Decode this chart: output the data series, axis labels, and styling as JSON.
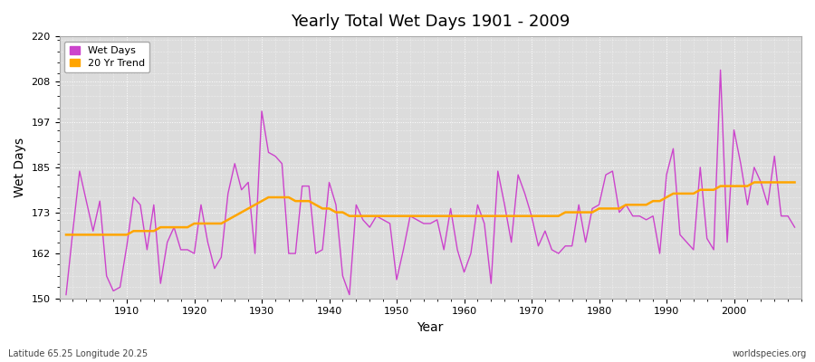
{
  "title": "Yearly Total Wet Days 1901 - 2009",
  "xlabel": "Year",
  "ylabel": "Wet Days",
  "subtitle_left": "Latitude 65.25 Longitude 20.25",
  "subtitle_right": "worldspecies.org",
  "ylim": [
    150,
    220
  ],
  "yticks": [
    150,
    162,
    173,
    185,
    197,
    208,
    220
  ],
  "line_color": "#CC44CC",
  "trend_color": "#FFA500",
  "bg_color": "#DCDCDC",
  "legend_labels": [
    "Wet Days",
    "20 Yr Trend"
  ],
  "wet_days": {
    "1901": 151,
    "1902": 168,
    "1903": 184,
    "1904": 176,
    "1905": 168,
    "1906": 176,
    "1907": 156,
    "1908": 152,
    "1909": 153,
    "1910": 164,
    "1911": 177,
    "1912": 175,
    "1913": 163,
    "1914": 175,
    "1915": 154,
    "1916": 165,
    "1917": 169,
    "1918": 163,
    "1919": 163,
    "1920": 162,
    "1921": 175,
    "1922": 165,
    "1923": 158,
    "1924": 161,
    "1925": 178,
    "1926": 186,
    "1927": 179,
    "1928": 181,
    "1929": 162,
    "1930": 200,
    "1931": 189,
    "1932": 188,
    "1933": 186,
    "1934": 162,
    "1935": 162,
    "1936": 180,
    "1937": 180,
    "1938": 162,
    "1939": 163,
    "1940": 181,
    "1941": 175,
    "1942": 156,
    "1943": 151,
    "1944": 175,
    "1945": 171,
    "1946": 169,
    "1947": 172,
    "1948": 171,
    "1949": 170,
    "1950": 155,
    "1951": 163,
    "1952": 172,
    "1953": 171,
    "1954": 170,
    "1955": 170,
    "1956": 171,
    "1957": 163,
    "1958": 174,
    "1959": 163,
    "1960": 157,
    "1961": 162,
    "1962": 175,
    "1963": 170,
    "1964": 154,
    "1965": 184,
    "1966": 175,
    "1967": 165,
    "1968": 183,
    "1969": 178,
    "1970": 172,
    "1971": 164,
    "1972": 168,
    "1973": 163,
    "1974": 162,
    "1975": 164,
    "1976": 164,
    "1977": 175,
    "1978": 165,
    "1979": 174,
    "1980": 175,
    "1981": 183,
    "1982": 184,
    "1983": 173,
    "1984": 175,
    "1985": 172,
    "1986": 172,
    "1987": 171,
    "1988": 172,
    "1989": 162,
    "1990": 183,
    "1991": 190,
    "1992": 167,
    "1993": 165,
    "1994": 163,
    "1995": 185,
    "1996": 166,
    "1997": 163,
    "1998": 211,
    "1999": 165,
    "2000": 195,
    "2001": 186,
    "2002": 175,
    "2003": 185,
    "2004": 181,
    "2005": 175,
    "2006": 188,
    "2007": 172,
    "2008": 172,
    "2009": 169
  },
  "trend_days": {
    "1901": 167,
    "1902": 167,
    "1903": 167,
    "1904": 167,
    "1905": 167,
    "1906": 167,
    "1907": 167,
    "1908": 167,
    "1909": 167,
    "1910": 167,
    "1911": 168,
    "1912": 168,
    "1913": 168,
    "1914": 168,
    "1915": 169,
    "1916": 169,
    "1917": 169,
    "1918": 169,
    "1919": 169,
    "1920": 170,
    "1921": 170,
    "1922": 170,
    "1923": 170,
    "1924": 170,
    "1925": 171,
    "1926": 172,
    "1927": 173,
    "1928": 174,
    "1929": 175,
    "1930": 176,
    "1931": 177,
    "1932": 177,
    "1933": 177,
    "1934": 177,
    "1935": 176,
    "1936": 176,
    "1937": 176,
    "1938": 175,
    "1939": 174,
    "1940": 174,
    "1941": 173,
    "1942": 173,
    "1943": 172,
    "1944": 172,
    "1945": 172,
    "1946": 172,
    "1947": 172,
    "1948": 172,
    "1949": 172,
    "1950": 172,
    "1951": 172,
    "1952": 172,
    "1953": 172,
    "1954": 172,
    "1955": 172,
    "1956": 172,
    "1957": 172,
    "1958": 172,
    "1959": 172,
    "1960": 172,
    "1961": 172,
    "1962": 172,
    "1963": 172,
    "1964": 172,
    "1965": 172,
    "1966": 172,
    "1967": 172,
    "1968": 172,
    "1969": 172,
    "1970": 172,
    "1971": 172,
    "1972": 172,
    "1973": 172,
    "1974": 172,
    "1975": 173,
    "1976": 173,
    "1977": 173,
    "1978": 173,
    "1979": 173,
    "1980": 174,
    "1981": 174,
    "1982": 174,
    "1983": 174,
    "1984": 175,
    "1985": 175,
    "1986": 175,
    "1987": 175,
    "1988": 176,
    "1989": 176,
    "1990": 177,
    "1991": 178,
    "1992": 178,
    "1993": 178,
    "1994": 178,
    "1995": 179,
    "1996": 179,
    "1997": 179,
    "1998": 180,
    "1999": 180,
    "2000": 180,
    "2001": 180,
    "2002": 180,
    "2003": 181,
    "2004": 181,
    "2005": 181,
    "2006": 181,
    "2007": 181,
    "2008": 181,
    "2009": 181
  }
}
